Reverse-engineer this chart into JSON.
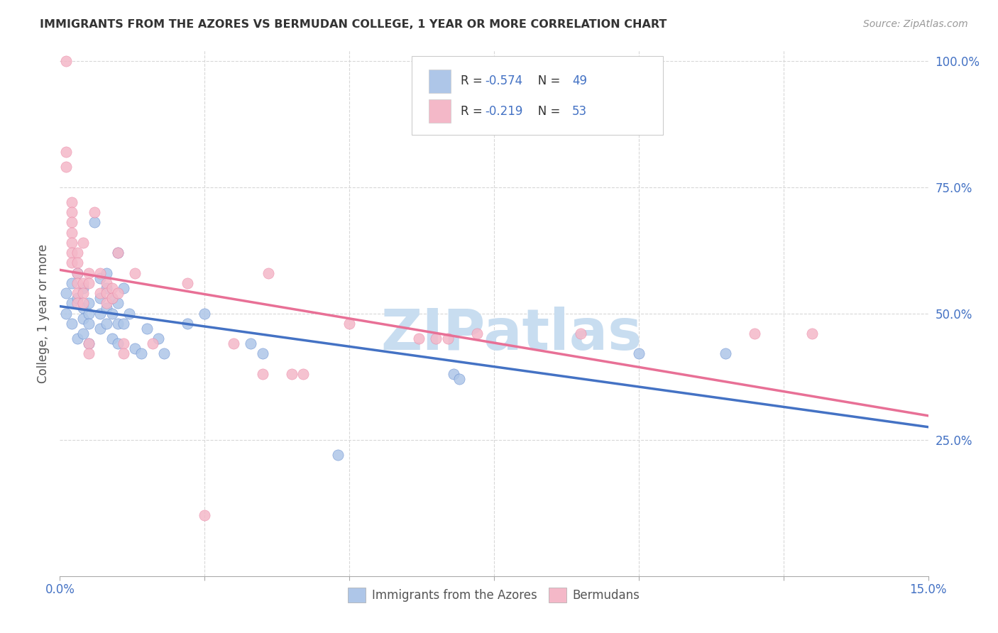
{
  "title": "IMMIGRANTS FROM THE AZORES VS BERMUDAN COLLEGE, 1 YEAR OR MORE CORRELATION CHART",
  "source": "Source: ZipAtlas.com",
  "ylabel": "College, 1 year or more",
  "xmin": 0.0,
  "xmax": 0.15,
  "ymin": 0.0,
  "ymax": 1.0,
  "xticks": [
    0.0,
    0.025,
    0.05,
    0.075,
    0.1,
    0.125,
    0.15
  ],
  "yticks_right": [
    0.25,
    0.5,
    0.75,
    1.0
  ],
  "ytick_labels_right": [
    "25.0%",
    "50.0%",
    "75.0%",
    "100.0%"
  ],
  "legend_label1": "Immigrants from the Azores",
  "legend_label2": "Bermudans",
  "blue_color": "#aec6e8",
  "pink_color": "#f4b8c8",
  "blue_line_color": "#4472c4",
  "pink_line_color": "#e87096",
  "blue_r": "-0.574",
  "blue_n": "49",
  "pink_r": "-0.219",
  "pink_n": "53",
  "blue_scatter": [
    [
      0.001,
      0.54
    ],
    [
      0.001,
      0.5
    ],
    [
      0.002,
      0.48
    ],
    [
      0.002,
      0.56
    ],
    [
      0.002,
      0.52
    ],
    [
      0.003,
      0.53
    ],
    [
      0.003,
      0.45
    ],
    [
      0.003,
      0.58
    ],
    [
      0.004,
      0.51
    ],
    [
      0.004,
      0.49
    ],
    [
      0.004,
      0.46
    ],
    [
      0.004,
      0.55
    ],
    [
      0.005,
      0.5
    ],
    [
      0.005,
      0.48
    ],
    [
      0.005,
      0.52
    ],
    [
      0.005,
      0.44
    ],
    [
      0.006,
      0.68
    ],
    [
      0.007,
      0.57
    ],
    [
      0.007,
      0.53
    ],
    [
      0.007,
      0.5
    ],
    [
      0.007,
      0.47
    ],
    [
      0.008,
      0.58
    ],
    [
      0.008,
      0.55
    ],
    [
      0.008,
      0.51
    ],
    [
      0.008,
      0.48
    ],
    [
      0.009,
      0.53
    ],
    [
      0.009,
      0.5
    ],
    [
      0.009,
      0.45
    ],
    [
      0.01,
      0.62
    ],
    [
      0.01,
      0.52
    ],
    [
      0.01,
      0.48
    ],
    [
      0.01,
      0.44
    ],
    [
      0.011,
      0.55
    ],
    [
      0.011,
      0.48
    ],
    [
      0.012,
      0.5
    ],
    [
      0.013,
      0.43
    ],
    [
      0.014,
      0.42
    ],
    [
      0.015,
      0.47
    ],
    [
      0.017,
      0.45
    ],
    [
      0.018,
      0.42
    ],
    [
      0.022,
      0.48
    ],
    [
      0.025,
      0.5
    ],
    [
      0.033,
      0.44
    ],
    [
      0.035,
      0.42
    ],
    [
      0.048,
      0.22
    ],
    [
      0.068,
      0.38
    ],
    [
      0.069,
      0.37
    ],
    [
      0.1,
      0.42
    ],
    [
      0.115,
      0.42
    ]
  ],
  "pink_scatter": [
    [
      0.001,
      1.0
    ],
    [
      0.001,
      0.82
    ],
    [
      0.001,
      0.79
    ],
    [
      0.002,
      0.72
    ],
    [
      0.002,
      0.7
    ],
    [
      0.002,
      0.68
    ],
    [
      0.002,
      0.66
    ],
    [
      0.002,
      0.64
    ],
    [
      0.002,
      0.62
    ],
    [
      0.002,
      0.6
    ],
    [
      0.003,
      0.62
    ],
    [
      0.003,
      0.6
    ],
    [
      0.003,
      0.58
    ],
    [
      0.003,
      0.56
    ],
    [
      0.003,
      0.54
    ],
    [
      0.003,
      0.52
    ],
    [
      0.004,
      0.64
    ],
    [
      0.004,
      0.56
    ],
    [
      0.004,
      0.54
    ],
    [
      0.004,
      0.52
    ],
    [
      0.005,
      0.58
    ],
    [
      0.005,
      0.56
    ],
    [
      0.005,
      0.44
    ],
    [
      0.005,
      0.42
    ],
    [
      0.006,
      0.7
    ],
    [
      0.007,
      0.58
    ],
    [
      0.007,
      0.54
    ],
    [
      0.008,
      0.56
    ],
    [
      0.008,
      0.54
    ],
    [
      0.008,
      0.52
    ],
    [
      0.009,
      0.55
    ],
    [
      0.009,
      0.53
    ],
    [
      0.01,
      0.62
    ],
    [
      0.01,
      0.54
    ],
    [
      0.011,
      0.44
    ],
    [
      0.011,
      0.42
    ],
    [
      0.013,
      0.58
    ],
    [
      0.016,
      0.44
    ],
    [
      0.022,
      0.56
    ],
    [
      0.025,
      0.1
    ],
    [
      0.03,
      0.44
    ],
    [
      0.035,
      0.38
    ],
    [
      0.036,
      0.58
    ],
    [
      0.04,
      0.38
    ],
    [
      0.042,
      0.38
    ],
    [
      0.05,
      0.48
    ],
    [
      0.062,
      0.45
    ],
    [
      0.065,
      0.45
    ],
    [
      0.067,
      0.45
    ],
    [
      0.072,
      0.46
    ],
    [
      0.09,
      0.46
    ],
    [
      0.12,
      0.46
    ],
    [
      0.13,
      0.46
    ]
  ],
  "watermark": "ZIPatlas",
  "watermark_color": "#c8ddf0",
  "background_color": "#ffffff",
  "grid_color": "#d8d8d8"
}
